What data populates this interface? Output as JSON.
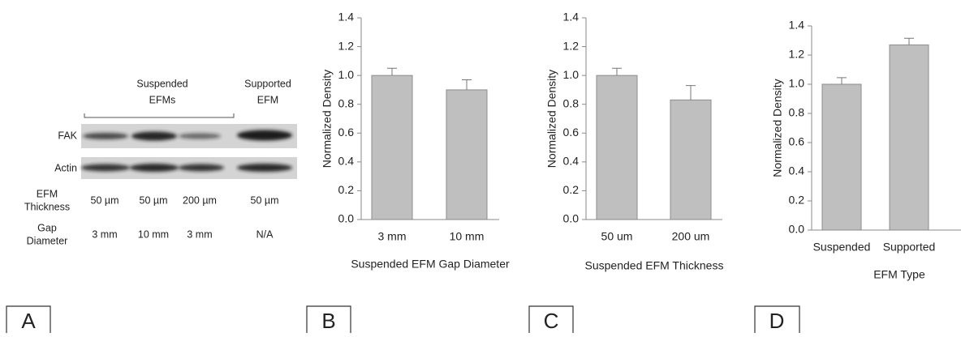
{
  "panels": [
    "A",
    "B",
    "C",
    "D"
  ],
  "blot": {
    "groups": [
      {
        "lines": [
          "Suspended",
          "EFMs"
        ]
      },
      {
        "lines": [
          "Supported",
          "EFM"
        ]
      }
    ],
    "bands": [
      "FAK",
      "Actin"
    ],
    "rows": [
      {
        "label": [
          "EFM",
          "Thickness"
        ],
        "values": [
          "50 µm",
          "50 µm",
          "200 µm",
          "50 µm"
        ]
      },
      {
        "label": [
          "Gap",
          "Diameter"
        ],
        "values": [
          "3 mm",
          "10 mm",
          "3 mm",
          "N/A"
        ]
      }
    ]
  },
  "chart_data": [
    {
      "type": "bar",
      "categories": [
        "3 mm",
        "10 mm"
      ],
      "values": [
        1.0,
        0.9
      ],
      "errors": [
        0.05,
        0.07
      ],
      "color": "#bfbfbf",
      "ylabel": "Normalized Density",
      "xlabel": "Suspended EFM Gap Diameter",
      "ylim": [
        0,
        1.4
      ],
      "yticks": [
        {
          "value": 0,
          "label": "0.0"
        },
        0.2,
        0.4,
        0.6,
        0.8,
        {
          "value": 1,
          "label": "1.0"
        },
        1.2,
        1.4
      ]
    },
    {
      "type": "bar",
      "categories": [
        "50 um",
        "200 um"
      ],
      "values": [
        1.0,
        0.83
      ],
      "errors": [
        0.05,
        0.1
      ],
      "color": "#bfbfbf",
      "ylabel": "Normalized Density",
      "xlabel": "Suspended EFM Thickness",
      "ylim": [
        0,
        1.4
      ],
      "yticks": [
        {
          "value": 0,
          "label": "0.0"
        },
        0.2,
        0.4,
        0.6,
        0.8,
        {
          "value": 1,
          "label": "1.0"
        },
        1.2,
        1.4
      ]
    },
    {
      "type": "bar",
      "categories": [
        "Suspended",
        "Supported"
      ],
      "values": [
        1.0,
        1.27
      ],
      "errors": [
        0.045,
        0.045
      ],
      "color": "#bfbfbf",
      "ylabel": "Normalized Density",
      "xlabel": "EFM Type",
      "ylim": [
        0,
        1.4
      ],
      "yticks": [
        {
          "value": 0,
          "label": "0.0"
        },
        0.2,
        0.4,
        0.6,
        0.8,
        {
          "value": 1,
          "label": "1.0"
        },
        1.2,
        1.4
      ]
    }
  ]
}
